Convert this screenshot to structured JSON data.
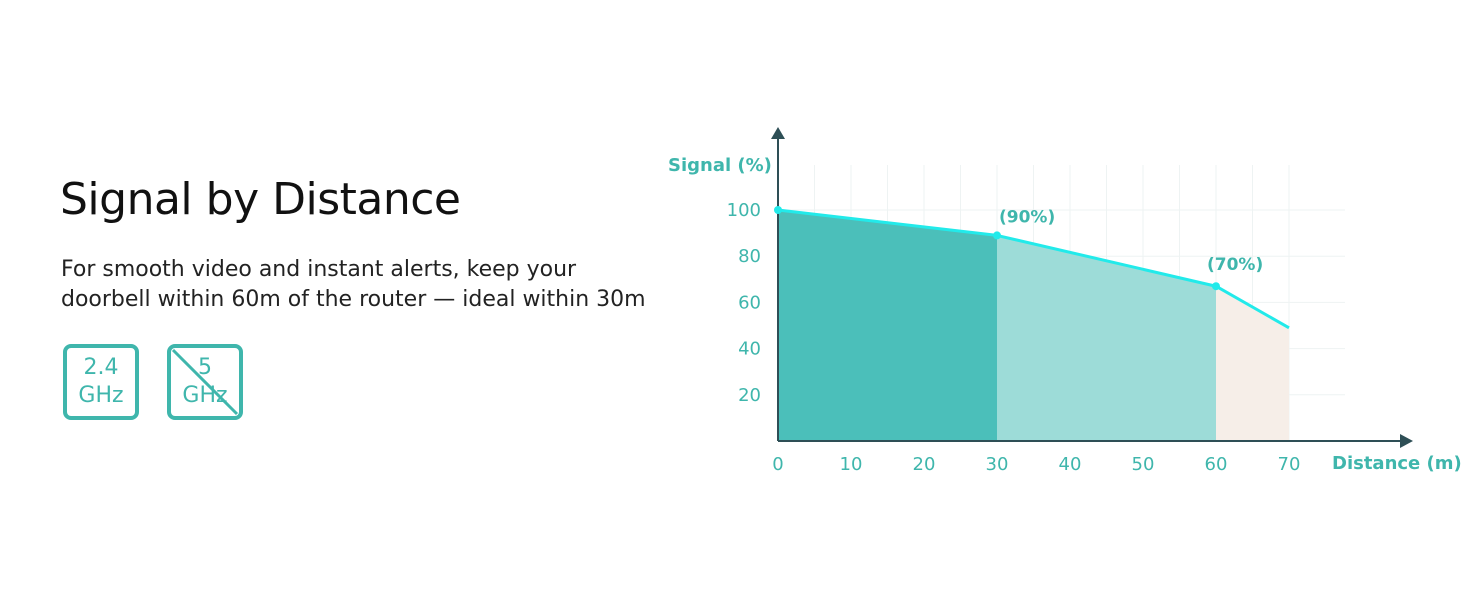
{
  "headline": "Signal by Distance",
  "subtitle": {
    "line1": "For smooth video and instant alerts, keep your",
    "line2": "doorbell within 60m of the router — ideal within 30m"
  },
  "badges": [
    {
      "line1": "2.4",
      "line2": "GHz",
      "supported": true
    },
    {
      "line1": "5",
      "line2": "GHz",
      "supported": false
    }
  ],
  "colors": {
    "accent": "#3fb6ac",
    "line": "#22eaea",
    "zone_ideal": "#4bbfba",
    "zone_good": "#9ddcd8",
    "zone_weak": "#f6eee8",
    "axis": "#2e4f56",
    "tick_text": "#3fb6ac"
  },
  "chart_data": {
    "type": "area",
    "ylabel": "Signal (%)",
    "xlabel": "Distance (m)",
    "xlim": [
      0,
      80
    ],
    "ylim": [
      0,
      100
    ],
    "x_ticks": [
      0,
      10,
      20,
      30,
      40,
      50,
      60,
      70
    ],
    "y_ticks": [
      20,
      40,
      60,
      80,
      100
    ],
    "grid": true,
    "series": [
      {
        "x": [
          0,
          30,
          60,
          70
        ],
        "y": [
          100,
          89,
          67,
          49
        ]
      }
    ],
    "zones": [
      {
        "from": 0,
        "to": 30
      },
      {
        "from": 30,
        "to": 60
      },
      {
        "from": 60,
        "to": 70
      }
    ],
    "annotations": [
      {
        "x": 30,
        "y": 89,
        "text": "(90%)"
      },
      {
        "x": 60,
        "y": 67,
        "text": "(70%)"
      }
    ]
  }
}
